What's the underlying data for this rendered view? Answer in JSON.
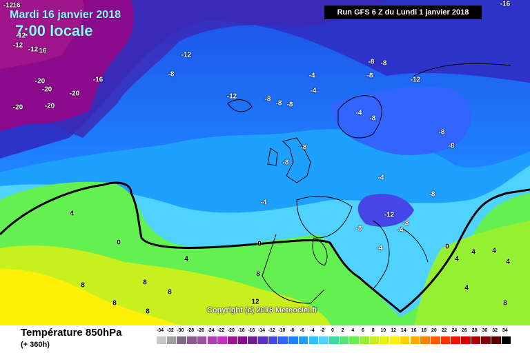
{
  "title": {
    "date": "Mardi 16 janvier 2018",
    "time": "7:00 locale"
  },
  "run_info": "Run GFS 6 Z du Lundi 1 janvier 2018",
  "parameter": "Température 850hPa",
  "lead_time": "(+ 360h)",
  "copyright": "Copyright (c) 2018 Meteociel.fr",
  "colorscale": {
    "values": [
      "-34",
      "-32",
      "-30",
      "-28",
      "-26",
      "-24",
      "-22",
      "-20",
      "-18",
      "-16",
      "-14",
      "-12",
      "-10",
      "-8",
      "-6",
      "-4",
      "-2",
      "0",
      "2",
      "4",
      "6",
      "8",
      "10",
      "12",
      "14",
      "16",
      "18",
      "20",
      "22",
      "24",
      "26",
      "28",
      "30",
      "32",
      "34"
    ],
    "colors": [
      "#c8c8c8",
      "#a0a0a0",
      "#7d6b82",
      "#8c5a8c",
      "#a050a0",
      "#b43cb4",
      "#c82dc8",
      "#a0148c",
      "#8c0a8c",
      "#6e1e96",
      "#5a32c8",
      "#4646e6",
      "#3264ff",
      "#1e82ff",
      "#1ea0ff",
      "#32beff",
      "#50d2ff",
      "#3cdca0",
      "#50e678",
      "#64f050",
      "#96f032",
      "#c8f01e",
      "#e6f014",
      "#fff00a",
      "#ffd200",
      "#ffaa00",
      "#ff8200",
      "#ff5a00",
      "#ff3200",
      "#f01400",
      "#d20000",
      "#aa0000",
      "#820000",
      "#5a0000",
      "#000000"
    ]
  },
  "contour_labels": [
    "-12",
    "16",
    "-12",
    "-12",
    "16",
    "-12",
    "-20",
    "-20",
    "-20",
    "-16",
    "-20",
    "-20",
    "-12",
    "-8",
    "-12",
    "-8",
    "-8",
    "-8",
    "-4",
    "-4",
    "-8",
    "-8",
    "-8",
    "-12",
    "-4",
    "-8",
    "-8",
    "-8",
    "-8",
    "-8",
    "-4",
    "-4",
    "-8",
    "-12",
    "-8",
    "-8",
    "-4",
    "-4",
    "0",
    "4",
    "0",
    "4",
    "8",
    "8",
    "8",
    "8",
    "8",
    "8",
    "12",
    "0",
    "4",
    "4",
    "4",
    "4",
    "4",
    "8",
    "-16"
  ]
}
